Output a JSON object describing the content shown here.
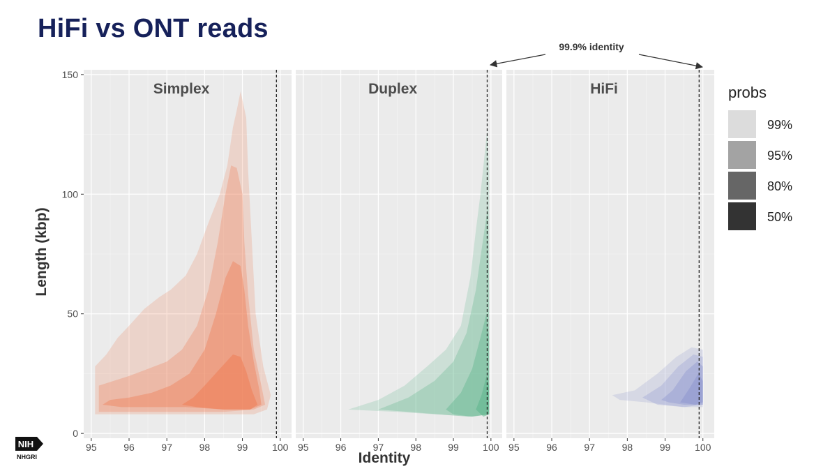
{
  "slide": {
    "title": "HiFi vs ONT reads"
  },
  "logo": {
    "mark": "NIH",
    "subtitle": "NHGRI"
  },
  "chart_data": {
    "type": "area",
    "subtype": "2d-density-contour (highest-density regions), faceted",
    "xlabel": "Identity",
    "ylabel": "Length (kbp)",
    "xlim": [
      94.8,
      100.3
    ],
    "ylim": [
      -2,
      152
    ],
    "x_ticks": [
      95,
      96,
      97,
      98,
      99,
      100
    ],
    "y_ticks": [
      0,
      50,
      100,
      150
    ],
    "grid": true,
    "facets": [
      {
        "label": "Simplex",
        "color": "#ee7e55",
        "levels": [
          {
            "prob": "99%",
            "polygon": [
              [
                95.1,
                8
              ],
              [
                95.1,
                28
              ],
              [
                95.4,
                33
              ],
              [
                95.7,
                40
              ],
              [
                96.0,
                45
              ],
              [
                96.4,
                52
              ],
              [
                96.8,
                57
              ],
              [
                97.1,
                60
              ],
              [
                97.5,
                66
              ],
              [
                97.8,
                75
              ],
              [
                98.1,
                88
              ],
              [
                98.4,
                100
              ],
              [
                98.6,
                112
              ],
              [
                98.75,
                128
              ],
              [
                98.85,
                135
              ],
              [
                98.95,
                143
              ],
              [
                99.1,
                132
              ],
              [
                99.15,
                110
              ],
              [
                99.25,
                80
              ],
              [
                99.35,
                50
              ],
              [
                99.55,
                28
              ],
              [
                99.75,
                16
              ],
              [
                99.65,
                10
              ],
              [
                99.3,
                8
              ],
              [
                98.2,
                8
              ],
              [
                96.8,
                8
              ],
              [
                95.8,
                8
              ]
            ]
          },
          {
            "prob": "95%",
            "polygon": [
              [
                95.2,
                9
              ],
              [
                95.2,
                20
              ],
              [
                95.6,
                22
              ],
              [
                96.0,
                24
              ],
              [
                96.5,
                27
              ],
              [
                97.0,
                30
              ],
              [
                97.4,
                35
              ],
              [
                97.8,
                45
              ],
              [
                98.1,
                60
              ],
              [
                98.35,
                80
              ],
              [
                98.55,
                100
              ],
              [
                98.7,
                112
              ],
              [
                98.85,
                111
              ],
              [
                99.0,
                100
              ],
              [
                99.05,
                80
              ],
              [
                99.15,
                58
              ],
              [
                99.3,
                35
              ],
              [
                99.5,
                20
              ],
              [
                99.6,
                12
              ],
              [
                99.3,
                10
              ],
              [
                98.5,
                9
              ],
              [
                97.5,
                9
              ],
              [
                96.5,
                9
              ]
            ]
          },
          {
            "prob": "80%",
            "polygon": [
              [
                95.3,
                12
              ],
              [
                95.5,
                14
              ],
              [
                96.0,
                15
              ],
              [
                96.6,
                17
              ],
              [
                97.1,
                20
              ],
              [
                97.6,
                25
              ],
              [
                98.0,
                35
              ],
              [
                98.3,
                50
              ],
              [
                98.55,
                65
              ],
              [
                98.75,
                72
              ],
              [
                98.95,
                70
              ],
              [
                99.05,
                60
              ],
              [
                99.15,
                45
              ],
              [
                99.3,
                30
              ],
              [
                99.45,
                18
              ],
              [
                99.5,
                12
              ],
              [
                99.2,
                10
              ],
              [
                98.5,
                10
              ],
              [
                97.5,
                11
              ],
              [
                96.5,
                11
              ],
              [
                95.8,
                11
              ]
            ]
          },
          {
            "prob": "50%",
            "polygon": [
              [
                97.4,
                12
              ],
              [
                97.7,
                15
              ],
              [
                98.0,
                20
              ],
              [
                98.4,
                27
              ],
              [
                98.75,
                33
              ],
              [
                98.95,
                32
              ],
              [
                99.1,
                26
              ],
              [
                99.25,
                18
              ],
              [
                99.4,
                12
              ],
              [
                99.2,
                10
              ],
              [
                98.5,
                10
              ],
              [
                97.8,
                11
              ]
            ]
          }
        ]
      },
      {
        "label": "Duplex",
        "color": "#5fb68c",
        "levels": [
          {
            "prob": "99%",
            "polygon": [
              [
                96.2,
                10
              ],
              [
                97.0,
                14
              ],
              [
                97.7,
                20
              ],
              [
                98.3,
                28
              ],
              [
                98.8,
                35
              ],
              [
                99.2,
                45
              ],
              [
                99.45,
                65
              ],
              [
                99.6,
                85
              ],
              [
                99.72,
                100
              ],
              [
                99.82,
                115
              ],
              [
                99.9,
                127
              ],
              [
                99.95,
                110
              ],
              [
                99.95,
                60
              ],
              [
                99.95,
                25
              ],
              [
                99.95,
                8
              ],
              [
                99.5,
                7
              ],
              [
                98.5,
                8
              ],
              [
                97.5,
                9
              ]
            ]
          },
          {
            "prob": "95%",
            "polygon": [
              [
                97.0,
                10
              ],
              [
                97.8,
                15
              ],
              [
                98.5,
                22
              ],
              [
                99.0,
                30
              ],
              [
                99.35,
                42
              ],
              [
                99.6,
                60
              ],
              [
                99.78,
                80
              ],
              [
                99.92,
                95
              ],
              [
                99.95,
                60
              ],
              [
                99.95,
                20
              ],
              [
                99.95,
                8
              ],
              [
                99.4,
                7
              ],
              [
                98.6,
                8
              ],
              [
                97.8,
                9
              ]
            ]
          },
          {
            "prob": "80%",
            "polygon": [
              [
                98.8,
                10
              ],
              [
                99.2,
                17
              ],
              [
                99.5,
                27
              ],
              [
                99.72,
                40
              ],
              [
                99.88,
                50
              ],
              [
                99.95,
                40
              ],
              [
                99.95,
                15
              ],
              [
                99.95,
                8
              ],
              [
                99.5,
                7
              ],
              [
                99.0,
                8
              ]
            ]
          },
          {
            "prob": "50%",
            "polygon": [
              [
                99.6,
                10
              ],
              [
                99.75,
                16
              ],
              [
                99.88,
                24
              ],
              [
                99.95,
                20
              ],
              [
                99.95,
                10
              ],
              [
                99.95,
                8
              ],
              [
                99.8,
                7
              ]
            ]
          }
        ]
      },
      {
        "label": "HiFi",
        "color": "#8e96cf",
        "levels": [
          {
            "prob": "99%",
            "polygon": [
              [
                97.6,
                16
              ],
              [
                98.2,
                18
              ],
              [
                98.8,
                25
              ],
              [
                99.3,
                32
              ],
              [
                99.7,
                36
              ],
              [
                100.0,
                35
              ],
              [
                100.0,
                11
              ],
              [
                99.5,
                11
              ],
              [
                98.5,
                13
              ],
              [
                97.8,
                14
              ]
            ]
          },
          {
            "prob": "95%",
            "polygon": [
              [
                98.4,
                15
              ],
              [
                98.9,
                20
              ],
              [
                99.35,
                28
              ],
              [
                99.75,
                33
              ],
              [
                100.0,
                32
              ],
              [
                100.0,
                12
              ],
              [
                99.5,
                11
              ],
              [
                98.8,
                12
              ]
            ]
          },
          {
            "prob": "80%",
            "polygon": [
              [
                98.9,
                14
              ],
              [
                99.2,
                18
              ],
              [
                99.55,
                26
              ],
              [
                99.85,
                30
              ],
              [
                100.0,
                28
              ],
              [
                100.0,
                12
              ],
              [
                99.5,
                12
              ],
              [
                99.1,
                13
              ]
            ]
          },
          {
            "prob": "50%",
            "polygon": [
              [
                99.4,
                13
              ],
              [
                99.65,
                19
              ],
              [
                99.88,
                25
              ],
              [
                100.0,
                22
              ],
              [
                100.0,
                13
              ],
              [
                99.8,
                12
              ]
            ]
          }
        ]
      }
    ],
    "reference_line": {
      "x": 99.9,
      "label": "99.9% identity"
    },
    "legend": {
      "title": "probs",
      "position": "right",
      "entries": [
        {
          "label": "99%",
          "color": "#dcdcdc"
        },
        {
          "label": "95%",
          "color": "#a3a3a3"
        },
        {
          "label": "80%",
          "color": "#666666"
        },
        {
          "label": "50%",
          "color": "#333333"
        }
      ]
    },
    "level_opacity": {
      "99%": 0.22,
      "95%": 0.3,
      "80%": 0.42,
      "50%": 0.55
    }
  }
}
